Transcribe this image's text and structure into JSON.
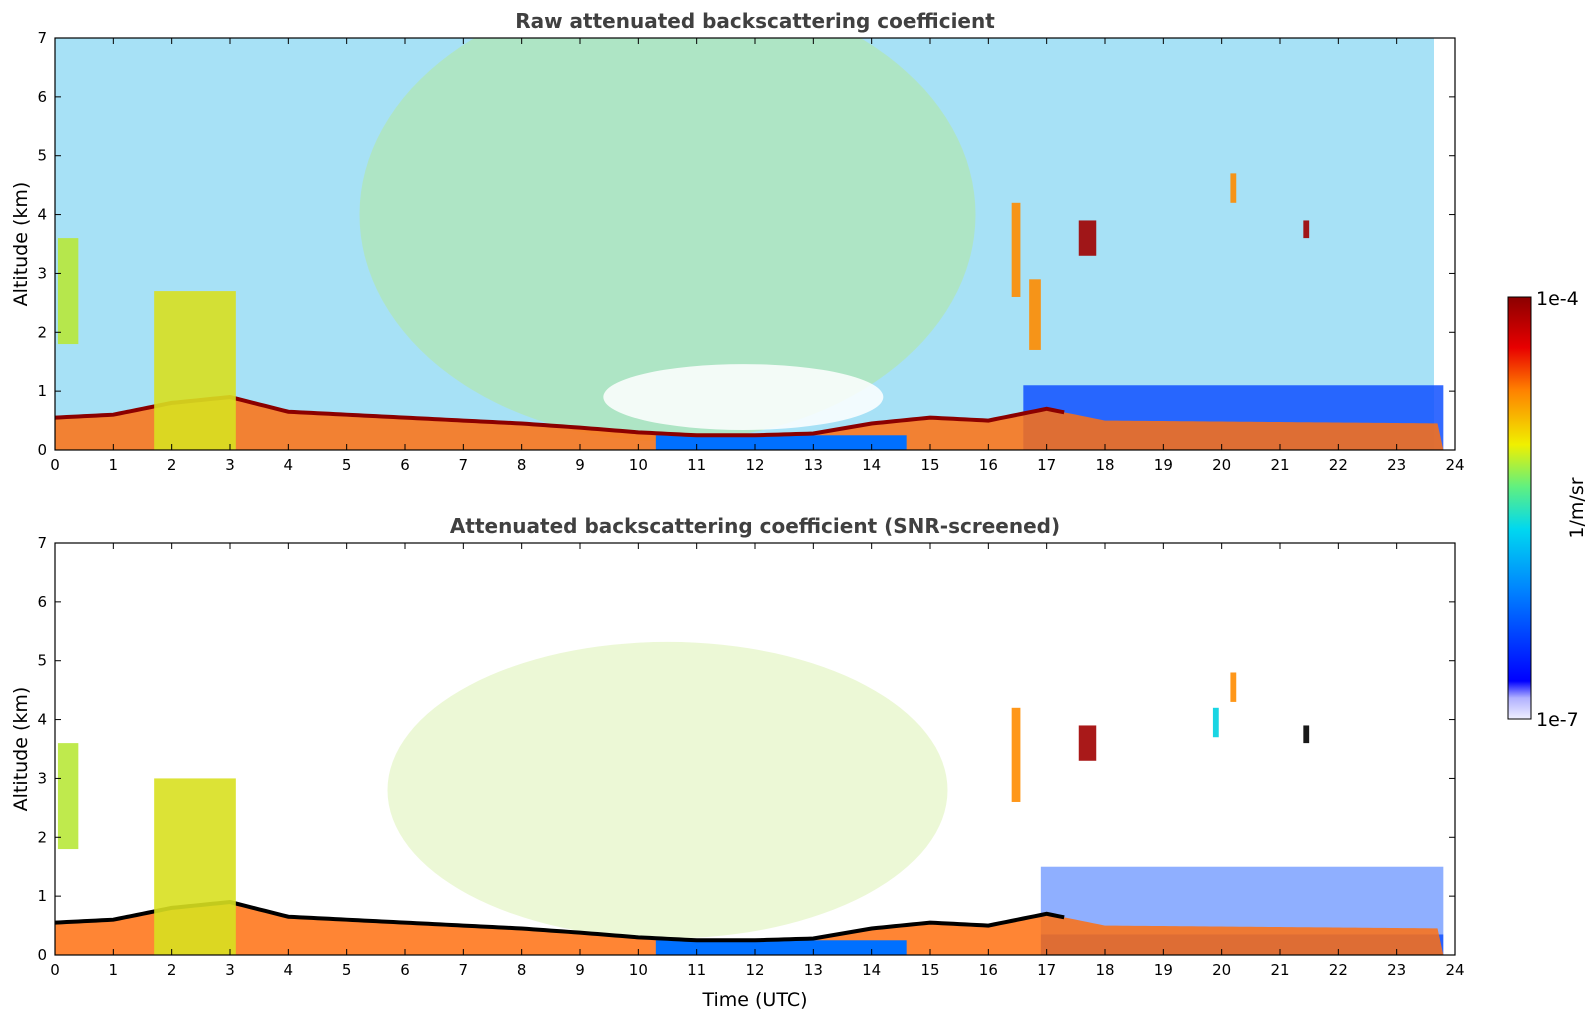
{
  "chart_data": [
    {
      "type": "heatmap",
      "title": "Raw attenuated backscattering coefficient",
      "xlabel": "",
      "ylabel": "Altitude (km)",
      "xlim": [
        0,
        24
      ],
      "ylim": [
        0,
        7
      ],
      "xticks": [
        "0",
        "1",
        "2",
        "3",
        "4",
        "5",
        "6",
        "7",
        "8",
        "9",
        "10",
        "11",
        "12",
        "13",
        "14",
        "15",
        "16",
        "17",
        "18",
        "19",
        "20",
        "21",
        "22",
        "23",
        "24"
      ],
      "yticks": [
        "0",
        "1",
        "2",
        "3",
        "4",
        "5",
        "6",
        "7"
      ],
      "screened": false,
      "boundary_layer_top_km": [
        [
          0,
          0.55
        ],
        [
          1,
          0.6
        ],
        [
          2,
          0.8
        ],
        [
          3,
          0.9
        ],
        [
          4,
          0.65
        ],
        [
          5,
          0.6
        ],
        [
          6,
          0.55
        ],
        [
          7,
          0.5
        ],
        [
          8,
          0.45
        ],
        [
          9,
          0.38
        ],
        [
          10,
          0.3
        ],
        [
          11,
          0.25
        ],
        [
          12,
          0.25
        ],
        [
          13,
          0.28
        ],
        [
          14,
          0.45
        ],
        [
          15,
          0.55
        ],
        [
          16,
          0.5
        ],
        [
          17,
          0.7
        ],
        [
          18,
          0.5
        ],
        [
          24,
          0.45
        ]
      ],
      "features": [
        {
          "x": [
            0.05,
            0.4
          ],
          "y": [
            1.8,
            3.6
          ],
          "level": "yellow-green"
        },
        {
          "x": [
            1.7,
            3.1
          ],
          "y": [
            0,
            2.7
          ],
          "level": "yellow-green plume"
        },
        {
          "x": [
            16.4,
            16.55
          ],
          "y": [
            2.6,
            4.2
          ],
          "level": "orange"
        },
        {
          "x": [
            16.7,
            16.9
          ],
          "y": [
            1.7,
            2.9
          ],
          "level": "orange"
        },
        {
          "x": [
            17.55,
            17.85
          ],
          "y": [
            3.3,
            3.9
          ],
          "level": "dark red"
        },
        {
          "x": [
            20.15,
            20.25
          ],
          "y": [
            4.2,
            4.7
          ],
          "level": "orange"
        },
        {
          "x": [
            21.4,
            21.5
          ],
          "y": [
            3.6,
            3.9
          ],
          "level": "dark red"
        }
      ]
    },
    {
      "type": "heatmap",
      "title": "Attenuated backscattering coefficient (SNR-screened)",
      "xlabel": "Time (UTC)",
      "ylabel": "Altitude (km)",
      "xlim": [
        0,
        24
      ],
      "ylim": [
        0,
        7
      ],
      "xticks": [
        "0",
        "1",
        "2",
        "3",
        "4",
        "5",
        "6",
        "7",
        "8",
        "9",
        "10",
        "11",
        "12",
        "13",
        "14",
        "15",
        "16",
        "17",
        "18",
        "19",
        "20",
        "21",
        "22",
        "23",
        "24"
      ],
      "yticks": [
        "0",
        "1",
        "2",
        "3",
        "4",
        "5",
        "6",
        "7"
      ],
      "screened": true,
      "boundary_layer_top_km": [
        [
          0,
          0.55
        ],
        [
          1,
          0.6
        ],
        [
          2,
          0.8
        ],
        [
          3,
          0.9
        ],
        [
          4,
          0.65
        ],
        [
          5,
          0.6
        ],
        [
          6,
          0.55
        ],
        [
          7,
          0.5
        ],
        [
          8,
          0.45
        ],
        [
          9,
          0.38
        ],
        [
          10,
          0.3
        ],
        [
          11,
          0.25
        ],
        [
          12,
          0.25
        ],
        [
          13,
          0.28
        ],
        [
          14,
          0.45
        ],
        [
          15,
          0.55
        ],
        [
          16,
          0.5
        ],
        [
          17,
          0.7
        ],
        [
          18,
          0.5
        ],
        [
          24,
          0.45
        ]
      ],
      "features": [
        {
          "x": [
            0.05,
            0.4
          ],
          "y": [
            1.8,
            3.6
          ],
          "level": "yellow-green"
        },
        {
          "x": [
            1.7,
            3.1
          ],
          "y": [
            0,
            3.0
          ],
          "level": "yellow-green plume"
        },
        {
          "x": [
            16.4,
            16.55
          ],
          "y": [
            2.6,
            4.2
          ],
          "level": "orange"
        },
        {
          "x": [
            17.55,
            17.85
          ],
          "y": [
            3.3,
            3.9
          ],
          "level": "dark red"
        },
        {
          "x": [
            19.85,
            19.95
          ],
          "y": [
            3.7,
            4.2
          ],
          "level": "cyan"
        },
        {
          "x": [
            20.15,
            20.25
          ],
          "y": [
            4.3,
            4.8
          ],
          "level": "orange"
        },
        {
          "x": [
            21.4,
            21.5
          ],
          "y": [
            3.6,
            3.9
          ],
          "level": "black"
        }
      ]
    }
  ],
  "colorbar": {
    "max_label": "1e-4",
    "min_label": "1e-7",
    "unit_label": "1/m/sr",
    "colors": [
      "#f0f0ff",
      "#c6c6ff",
      "#9c9cff",
      "#0000ff",
      "#0040ff",
      "#0080ff",
      "#00c0ff",
      "#00e0e0",
      "#40f0a0",
      "#a0f040",
      "#f0f000",
      "#ffc000",
      "#ff8000",
      "#ff4000",
      "#e00000",
      "#8b0000"
    ]
  }
}
